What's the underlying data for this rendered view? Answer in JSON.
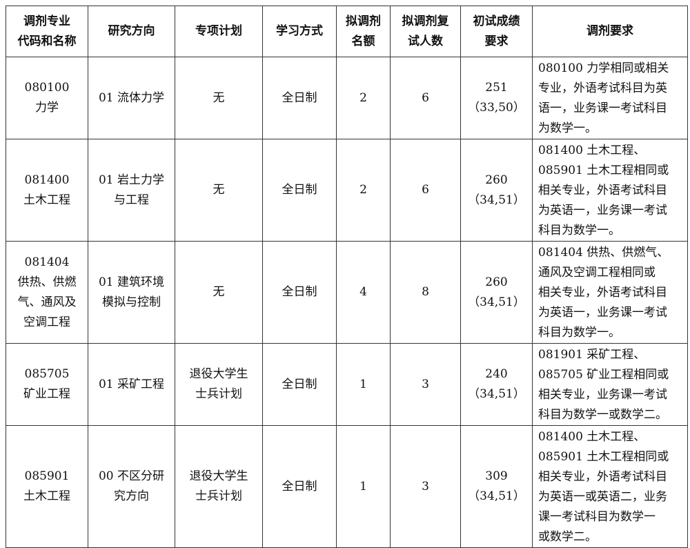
{
  "headers": [
    "调剂专业\n代码和名称",
    "研究方向",
    "专项计划",
    "学习方式",
    "拟调剂\n名额",
    "拟调剂复\n试人数",
    "初试成绩\n要求",
    "调剂要求"
  ],
  "rows": [
    [
      "080100\n力学",
      "01 流体力学",
      "无",
      "全日制",
      "2",
      "6",
      "251\n（33,50）",
      "080100 力学相同或相关\n专业，外语考试科目为英\n语一，业务课一考试科目\n为数学一。"
    ],
    [
      "081400\n土木工程",
      "01 岩土力学\n与工程",
      "无",
      "全日制",
      "2",
      "6",
      "260\n（34,51）",
      "081400 土木工程、\n085901 土木工程相同或\n相关专业，外语考试科目\n为英语一，业务课一考试\n科目为数学一。"
    ],
    [
      "081404\n供热、供燃\n气、通风及\n空调工程",
      "01 建筑环境\n模拟与控制",
      "无",
      "全日制",
      "4",
      "8",
      "260\n（34,51）",
      "081404 供热、供燃气、\n通风及空调工程相同或\n相关专业，外语考试科目\n为英语一，业务课一考试\n科目为数学一。"
    ],
    [
      "085705\n矿业工程",
      "01 采矿工程",
      "退役大学生\n士兵计划",
      "全日制",
      "1",
      "3",
      "240\n（34,51）",
      "081901 采矿工程、\n085705 矿业工程相同或\n相关专业，业务课一考试\n科目为数学一或数学二。"
    ],
    [
      "085901\n土木工程",
      "00 不区分研\n究方向",
      "退役大学生\n士兵计划",
      "全日制",
      "1",
      "3",
      "309\n（34,51）",
      "081400 土木工程、\n085901 土木工程相同或\n相关专业，外语考试科目\n为英语一或英语二，业务\n课一考试科目为数学一\n或数学二。"
    ]
  ]
}
